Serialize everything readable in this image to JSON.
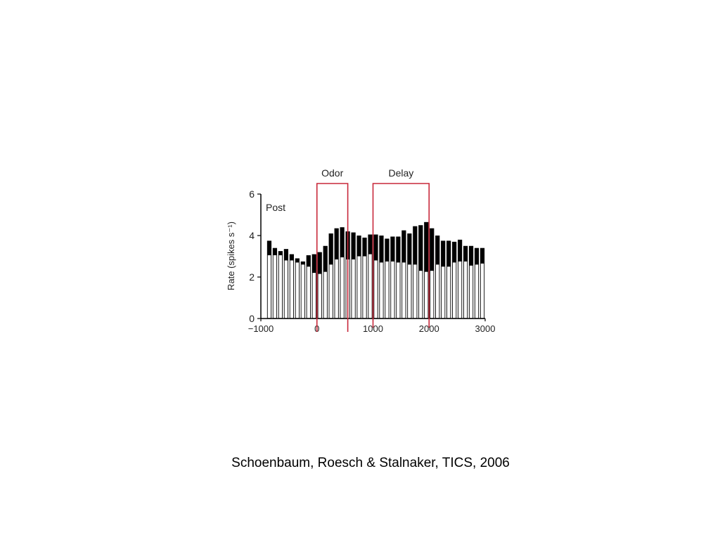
{
  "chart_data": {
    "type": "bar",
    "panel_label": "Post",
    "ylabel": "Rate (spikes s⁻¹)",
    "xlabel": "",
    "ylim": [
      0,
      6
    ],
    "xlim": [
      -1000,
      3000
    ],
    "y_ticks": [
      "0",
      "2",
      "4",
      "6"
    ],
    "x_ticks": [
      "−1000",
      "0",
      "1000",
      "2000",
      "3000"
    ],
    "x_tick_values": [
      -1000,
      0,
      1000,
      2000,
      3000
    ],
    "y_tick_values": [
      0,
      2,
      4,
      6
    ],
    "bin_width": 100,
    "bin_starts": [
      -900,
      -800,
      -700,
      -600,
      -500,
      -400,
      -300,
      -200,
      -100,
      0,
      100,
      200,
      300,
      400,
      500,
      600,
      700,
      800,
      900,
      1000,
      1100,
      1200,
      1300,
      1400,
      1500,
      1600,
      1700,
      1800,
      1900,
      2000,
      2100,
      2200,
      2300,
      2400,
      2500,
      2600,
      2700,
      2800,
      2900
    ],
    "series": [
      {
        "color": "#000000",
        "values": [
          3.75,
          3.4,
          3.25,
          3.35,
          3.1,
          2.9,
          2.75,
          3.05,
          3.1,
          3.2,
          3.5,
          4.1,
          4.35,
          4.4,
          4.2,
          4.15,
          4.0,
          3.9,
          4.05,
          4.05,
          4.0,
          3.85,
          3.95,
          3.95,
          4.25,
          4.1,
          4.45,
          4.5,
          4.65,
          4.35,
          4.0,
          3.75,
          3.75,
          3.7,
          3.8,
          3.5,
          3.5,
          3.4,
          3.4
        ]
      },
      {
        "color": "#ffffff",
        "values": [
          3.05,
          3.05,
          3.05,
          2.8,
          2.8,
          2.7,
          2.6,
          2.5,
          2.2,
          2.15,
          2.25,
          2.6,
          2.85,
          2.95,
          2.85,
          2.85,
          3.0,
          3.0,
          3.1,
          2.8,
          2.7,
          2.75,
          2.75,
          2.7,
          2.7,
          2.6,
          2.6,
          2.3,
          2.25,
          2.3,
          2.6,
          2.5,
          2.5,
          2.7,
          2.75,
          2.75,
          2.55,
          2.6,
          2.65
        ]
      }
    ],
    "annotations": [
      {
        "label": "Odor",
        "x_start": 0,
        "x_end": 550,
        "color": "#c8283a"
      },
      {
        "label": "Delay",
        "x_start": 1000,
        "x_end": 2000,
        "color": "#c8283a"
      }
    ],
    "grid": false,
    "legend": "none"
  },
  "caption": "Schoenbaum, Roesch & Stalnaker, TICS, 2006"
}
